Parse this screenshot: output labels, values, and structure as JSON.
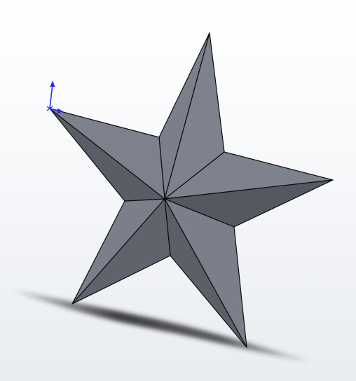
{
  "viewport": {
    "model": "star-solid",
    "background_top": "#ffffff",
    "background_bottom": "#e9ecf0"
  },
  "colors": {
    "face_light": "#7a7f89",
    "face_dark": "#535861",
    "edge": "#0b0c10",
    "shadow": "#3a3a3a",
    "triad_axis": "#1f2cff"
  },
  "icons": {
    "origin": "origin-triad-icon"
  }
}
